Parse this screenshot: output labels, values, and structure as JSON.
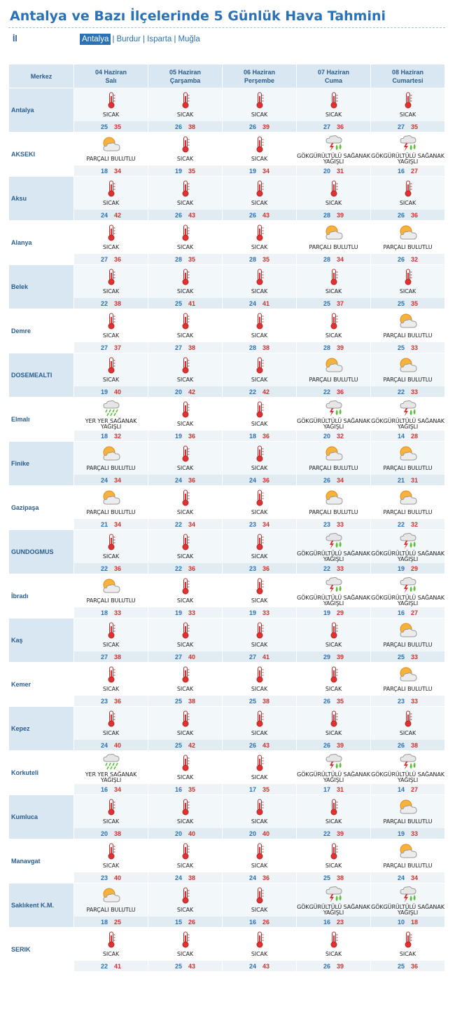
{
  "header": {
    "title": "Antalya ve Bazı İlçelerinde 5 Günlük Hava Tahmini",
    "il_label": "İl",
    "provinces": [
      {
        "label": "Antalya",
        "active": true
      },
      {
        "label": "Burdur",
        "active": false
      },
      {
        "label": "Isparta",
        "active": false
      },
      {
        "label": "Muğla",
        "active": false
      }
    ]
  },
  "table": {
    "merkez_label": "Merkez",
    "days": [
      {
        "date": "04 Haziran",
        "weekday": "Salı"
      },
      {
        "date": "05 Haziran",
        "weekday": "Çarşamba"
      },
      {
        "date": "06 Haziran",
        "weekday": "Perşembe"
      },
      {
        "date": "07 Haziran",
        "weekday": "Cuma"
      },
      {
        "date": "08 Haziran",
        "weekday": "Cumartesi"
      }
    ],
    "conditions": {
      "sicak": {
        "text": "SICAK",
        "icon": "thermometer-icon"
      },
      "pb": {
        "text": "PARÇALI BULUTLU",
        "icon": "partly-cloudy-icon"
      },
      "gsy": {
        "text": "GÖKGÜRÜLTÜLÜ SAĞANAK YAĞIŞLI",
        "icon": "thunderstorm-icon"
      },
      "ysy": {
        "text": "YER YER SAĞANAK YAĞIŞLI",
        "icon": "showers-icon"
      }
    },
    "rows": [
      {
        "city": "Antalya",
        "days": [
          {
            "c": "sicak",
            "min": "25",
            "max": "35"
          },
          {
            "c": "sicak",
            "min": "26",
            "max": "38"
          },
          {
            "c": "sicak",
            "min": "26",
            "max": "39"
          },
          {
            "c": "sicak",
            "min": "27",
            "max": "36"
          },
          {
            "c": "sicak",
            "min": "27",
            "max": "35"
          }
        ]
      },
      {
        "city": "AKSEKI",
        "days": [
          {
            "c": "pb",
            "min": "18",
            "max": "34"
          },
          {
            "c": "sicak",
            "min": "19",
            "max": "35"
          },
          {
            "c": "sicak",
            "min": "19",
            "max": "34"
          },
          {
            "c": "gsy",
            "min": "20",
            "max": "31"
          },
          {
            "c": "gsy",
            "min": "16",
            "max": "27"
          }
        ]
      },
      {
        "city": "Aksu",
        "days": [
          {
            "c": "sicak",
            "min": "24",
            "max": "42"
          },
          {
            "c": "sicak",
            "min": "26",
            "max": "43"
          },
          {
            "c": "sicak",
            "min": "26",
            "max": "43"
          },
          {
            "c": "sicak",
            "min": "28",
            "max": "39"
          },
          {
            "c": "sicak",
            "min": "26",
            "max": "36"
          }
        ]
      },
      {
        "city": "Alanya",
        "days": [
          {
            "c": "sicak",
            "min": "27",
            "max": "36"
          },
          {
            "c": "sicak",
            "min": "28",
            "max": "35"
          },
          {
            "c": "sicak",
            "min": "28",
            "max": "35"
          },
          {
            "c": "pb",
            "min": "28",
            "max": "34"
          },
          {
            "c": "pb",
            "min": "26",
            "max": "32"
          }
        ]
      },
      {
        "city": "Belek",
        "days": [
          {
            "c": "sicak",
            "min": "22",
            "max": "38"
          },
          {
            "c": "sicak",
            "min": "25",
            "max": "41"
          },
          {
            "c": "sicak",
            "min": "24",
            "max": "41"
          },
          {
            "c": "sicak",
            "min": "25",
            "max": "37"
          },
          {
            "c": "sicak",
            "min": "25",
            "max": "35"
          }
        ]
      },
      {
        "city": "Demre",
        "days": [
          {
            "c": "sicak",
            "min": "27",
            "max": "37"
          },
          {
            "c": "sicak",
            "min": "27",
            "max": "38"
          },
          {
            "c": "sicak",
            "min": "28",
            "max": "38"
          },
          {
            "c": "sicak",
            "min": "28",
            "max": "39"
          },
          {
            "c": "pb",
            "min": "25",
            "max": "33"
          }
        ]
      },
      {
        "city": "DOSEMEALTI",
        "days": [
          {
            "c": "sicak",
            "min": "19",
            "max": "40"
          },
          {
            "c": "sicak",
            "min": "20",
            "max": "42"
          },
          {
            "c": "sicak",
            "min": "22",
            "max": "42"
          },
          {
            "c": "pb",
            "min": "22",
            "max": "36"
          },
          {
            "c": "pb",
            "min": "22",
            "max": "33"
          }
        ]
      },
      {
        "city": "Elmalı",
        "days": [
          {
            "c": "ysy",
            "min": "18",
            "max": "32"
          },
          {
            "c": "sicak",
            "min": "19",
            "max": "36"
          },
          {
            "c": "sicak",
            "min": "18",
            "max": "36"
          },
          {
            "c": "gsy",
            "min": "20",
            "max": "32"
          },
          {
            "c": "gsy",
            "min": "14",
            "max": "28"
          }
        ]
      },
      {
        "city": "Finike",
        "days": [
          {
            "c": "pb",
            "min": "24",
            "max": "34"
          },
          {
            "c": "sicak",
            "min": "24",
            "max": "36"
          },
          {
            "c": "sicak",
            "min": "24",
            "max": "36"
          },
          {
            "c": "pb",
            "min": "26",
            "max": "34"
          },
          {
            "c": "pb",
            "min": "21",
            "max": "31"
          }
        ]
      },
      {
        "city": "Gazipaşa",
        "days": [
          {
            "c": "pb",
            "min": "21",
            "max": "34"
          },
          {
            "c": "sicak",
            "min": "22",
            "max": "34"
          },
          {
            "c": "sicak",
            "min": "23",
            "max": "34"
          },
          {
            "c": "pb",
            "min": "23",
            "max": "33"
          },
          {
            "c": "pb",
            "min": "22",
            "max": "32"
          }
        ]
      },
      {
        "city": "GUNDOGMUS",
        "days": [
          {
            "c": "sicak",
            "min": "22",
            "max": "36"
          },
          {
            "c": "sicak",
            "min": "22",
            "max": "36"
          },
          {
            "c": "sicak",
            "min": "23",
            "max": "36"
          },
          {
            "c": "gsy",
            "min": "22",
            "max": "33"
          },
          {
            "c": "gsy",
            "min": "19",
            "max": "29"
          }
        ]
      },
      {
        "city": "İbradı",
        "days": [
          {
            "c": "pb",
            "min": "18",
            "max": "33"
          },
          {
            "c": "sicak",
            "min": "19",
            "max": "33"
          },
          {
            "c": "sicak",
            "min": "19",
            "max": "33"
          },
          {
            "c": "gsy",
            "min": "19",
            "max": "29"
          },
          {
            "c": "gsy",
            "min": "16",
            "max": "27"
          }
        ]
      },
      {
        "city": "Kaş",
        "days": [
          {
            "c": "sicak",
            "min": "27",
            "max": "38"
          },
          {
            "c": "sicak",
            "min": "27",
            "max": "40"
          },
          {
            "c": "sicak",
            "min": "27",
            "max": "41"
          },
          {
            "c": "sicak",
            "min": "29",
            "max": "39"
          },
          {
            "c": "pb",
            "min": "25",
            "max": "33"
          }
        ]
      },
      {
        "city": "Kemer",
        "days": [
          {
            "c": "sicak",
            "min": "23",
            "max": "36"
          },
          {
            "c": "sicak",
            "min": "25",
            "max": "38"
          },
          {
            "c": "sicak",
            "min": "25",
            "max": "38"
          },
          {
            "c": "sicak",
            "min": "26",
            "max": "35"
          },
          {
            "c": "pb",
            "min": "23",
            "max": "33"
          }
        ]
      },
      {
        "city": "Kepez",
        "days": [
          {
            "c": "sicak",
            "min": "24",
            "max": "40"
          },
          {
            "c": "sicak",
            "min": "25",
            "max": "42"
          },
          {
            "c": "sicak",
            "min": "26",
            "max": "43"
          },
          {
            "c": "sicak",
            "min": "26",
            "max": "39"
          },
          {
            "c": "sicak",
            "min": "26",
            "max": "38"
          }
        ]
      },
      {
        "city": "Korkuteli",
        "days": [
          {
            "c": "ysy",
            "min": "16",
            "max": "34"
          },
          {
            "c": "sicak",
            "min": "16",
            "max": "35"
          },
          {
            "c": "sicak",
            "min": "17",
            "max": "35"
          },
          {
            "c": "gsy",
            "min": "17",
            "max": "31"
          },
          {
            "c": "gsy",
            "min": "14",
            "max": "27"
          }
        ]
      },
      {
        "city": "Kumluca",
        "days": [
          {
            "c": "sicak",
            "min": "20",
            "max": "38"
          },
          {
            "c": "sicak",
            "min": "20",
            "max": "40"
          },
          {
            "c": "sicak",
            "min": "20",
            "max": "40"
          },
          {
            "c": "sicak",
            "min": "22",
            "max": "39"
          },
          {
            "c": "pb",
            "min": "19",
            "max": "33"
          }
        ]
      },
      {
        "city": "Manavgat",
        "days": [
          {
            "c": "sicak",
            "min": "23",
            "max": "40"
          },
          {
            "c": "sicak",
            "min": "24",
            "max": "38"
          },
          {
            "c": "sicak",
            "min": "24",
            "max": "36"
          },
          {
            "c": "sicak",
            "min": "25",
            "max": "38"
          },
          {
            "c": "pb",
            "min": "24",
            "max": "34"
          }
        ]
      },
      {
        "city": "Saklıkent K.M.",
        "days": [
          {
            "c": "pb",
            "min": "18",
            "max": "25"
          },
          {
            "c": "sicak",
            "min": "15",
            "max": "26"
          },
          {
            "c": "sicak",
            "min": "16",
            "max": "26"
          },
          {
            "c": "gsy",
            "min": "16",
            "max": "23"
          },
          {
            "c": "gsy",
            "min": "10",
            "max": "18"
          }
        ]
      },
      {
        "city": "SERIK",
        "days": [
          {
            "c": "sicak",
            "min": "22",
            "max": "41"
          },
          {
            "c": "sicak",
            "min": "25",
            "max": "43"
          },
          {
            "c": "sicak",
            "min": "24",
            "max": "43"
          },
          {
            "c": "sicak",
            "min": "26",
            "max": "39"
          },
          {
            "c": "sicak",
            "min": "25",
            "max": "36"
          }
        ]
      }
    ]
  },
  "colors": {
    "title": "#2a72b5",
    "header_bg": "#d8e7f1",
    "min_temp": "#2a72b5",
    "max_temp": "#d0312d"
  }
}
